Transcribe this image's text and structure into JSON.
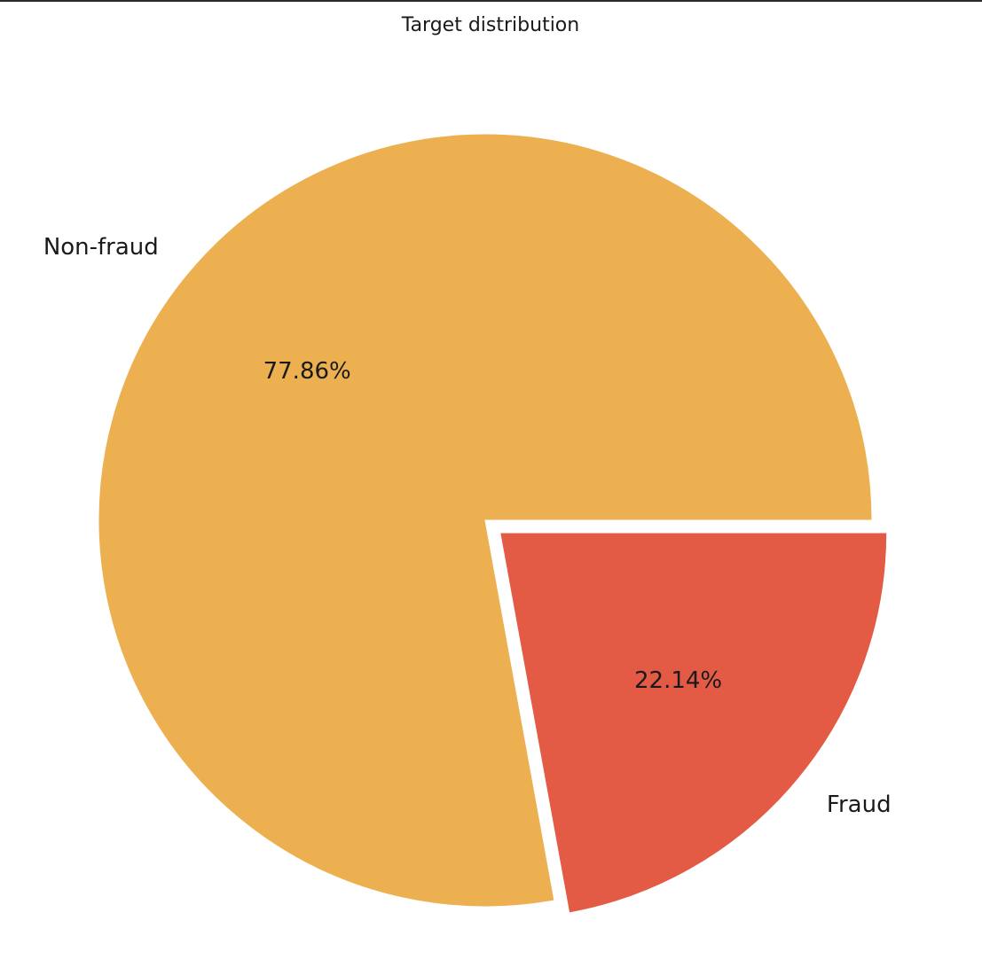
{
  "chart_data": {
    "type": "pie",
    "title": "Target distribution",
    "labels": [
      "Non-fraud",
      "Fraud"
    ],
    "values": [
      77.86,
      22.14
    ],
    "value_labels": [
      "77.86%",
      "22.14%"
    ],
    "colors": [
      "#ecb050",
      "#e35b45"
    ],
    "explode": [
      0,
      0.05
    ],
    "start_angle_deg": 0,
    "direction": "counterclockwise",
    "edge_color": "#ffffff",
    "legend": false
  }
}
